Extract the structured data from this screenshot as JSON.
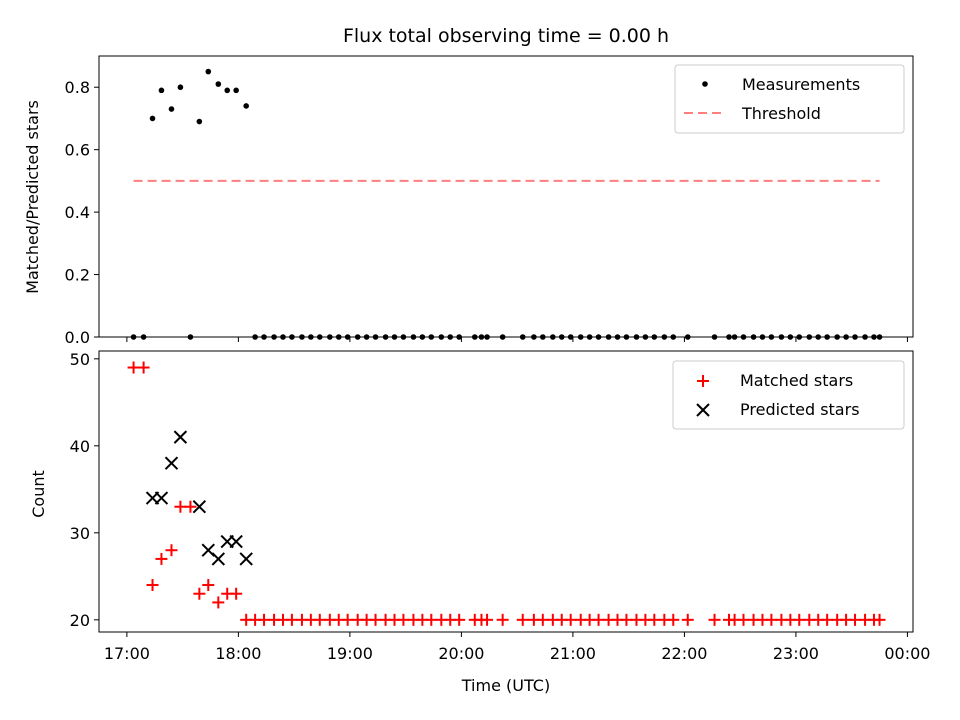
{
  "chart_data": [
    {
      "type": "scatter",
      "title": "Flux total observing time = 0.00 h",
      "xlabel": "",
      "ylabel": "Matched/Predicted stars",
      "ylim": [
        0,
        0.9
      ],
      "yticks": [
        0.0,
        0.2,
        0.4,
        0.6,
        0.8
      ],
      "ytick_labels": [
        "0.0",
        "0.2",
        "0.4",
        "0.6",
        "0.8"
      ],
      "legend_position": "top-right",
      "series": [
        {
          "name": "Measurements",
          "marker": "dot",
          "color": "#000000",
          "points": [
            [
              17.06,
              0.0
            ],
            [
              17.15,
              0.0
            ],
            [
              17.23,
              0.7
            ],
            [
              17.31,
              0.79
            ],
            [
              17.4,
              0.73
            ],
            [
              17.48,
              0.8
            ],
            [
              17.57,
              0.0
            ],
            [
              17.65,
              0.69
            ],
            [
              17.73,
              0.85
            ],
            [
              17.82,
              0.81
            ],
            [
              17.9,
              0.79
            ],
            [
              17.98,
              0.79
            ],
            [
              18.07,
              0.74
            ],
            [
              18.15,
              0.0
            ],
            [
              18.23,
              0.0
            ],
            [
              18.32,
              0.0
            ],
            [
              18.4,
              0.0
            ],
            [
              18.48,
              0.0
            ],
            [
              18.57,
              0.0
            ],
            [
              18.65,
              0.0
            ],
            [
              18.73,
              0.0
            ],
            [
              18.82,
              0.0
            ],
            [
              18.9,
              0.0
            ],
            [
              18.98,
              0.0
            ],
            [
              19.07,
              0.0
            ],
            [
              19.15,
              0.0
            ],
            [
              19.23,
              0.0
            ],
            [
              19.32,
              0.0
            ],
            [
              19.4,
              0.0
            ],
            [
              19.48,
              0.0
            ],
            [
              19.57,
              0.0
            ],
            [
              19.65,
              0.0
            ],
            [
              19.73,
              0.0
            ],
            [
              19.82,
              0.0
            ],
            [
              19.9,
              0.0
            ],
            [
              19.98,
              0.0
            ],
            [
              20.12,
              0.0
            ],
            [
              20.18,
              0.0
            ],
            [
              20.23,
              0.0
            ],
            [
              20.37,
              0.0
            ],
            [
              20.55,
              0.0
            ],
            [
              20.65,
              0.0
            ],
            [
              20.73,
              0.0
            ],
            [
              20.82,
              0.0
            ],
            [
              20.9,
              0.0
            ],
            [
              20.98,
              0.0
            ],
            [
              21.07,
              0.0
            ],
            [
              21.15,
              0.0
            ],
            [
              21.23,
              0.0
            ],
            [
              21.32,
              0.0
            ],
            [
              21.4,
              0.0
            ],
            [
              21.48,
              0.0
            ],
            [
              21.57,
              0.0
            ],
            [
              21.65,
              0.0
            ],
            [
              21.73,
              0.0
            ],
            [
              21.82,
              0.0
            ],
            [
              21.9,
              0.0
            ],
            [
              22.03,
              0.0
            ],
            [
              22.27,
              0.0
            ],
            [
              22.4,
              0.0
            ],
            [
              22.45,
              0.0
            ],
            [
              22.53,
              0.0
            ],
            [
              22.62,
              0.0
            ],
            [
              22.7,
              0.0
            ],
            [
              22.78,
              0.0
            ],
            [
              22.87,
              0.0
            ],
            [
              22.95,
              0.0
            ],
            [
              23.03,
              0.0
            ],
            [
              23.12,
              0.0
            ],
            [
              23.2,
              0.0
            ],
            [
              23.28,
              0.0
            ],
            [
              23.37,
              0.0
            ],
            [
              23.45,
              0.0
            ],
            [
              23.53,
              0.0
            ],
            [
              23.62,
              0.0
            ],
            [
              23.7,
              0.0
            ],
            [
              23.75,
              0.0
            ]
          ]
        },
        {
          "name": "Threshold",
          "marker": "dashed-line",
          "color": "#ff7f7f",
          "points": [
            [
              17.06,
              0.5
            ],
            [
              23.75,
              0.5
            ]
          ]
        }
      ]
    },
    {
      "type": "scatter",
      "title": "",
      "xlabel": "Time (UTC)",
      "ylabel": "Count",
      "xlim": [
        16.75,
        24.05
      ],
      "xticks": [
        17,
        18,
        19,
        20,
        21,
        22,
        23,
        24
      ],
      "xtick_labels": [
        "17:00",
        "18:00",
        "19:00",
        "20:00",
        "21:00",
        "22:00",
        "23:00",
        "00:00"
      ],
      "ylim": [
        18.6,
        50.9
      ],
      "yticks": [
        20,
        30,
        40,
        50
      ],
      "ytick_labels": [
        "20",
        "30",
        "40",
        "50"
      ],
      "legend_position": "top-right",
      "series": [
        {
          "name": "Matched stars",
          "marker": "plus",
          "color": "#ff0000",
          "points": [
            [
              17.06,
              49
            ],
            [
              17.15,
              49
            ],
            [
              17.23,
              24
            ],
            [
              17.31,
              27
            ],
            [
              17.4,
              28
            ],
            [
              17.48,
              33
            ],
            [
              17.57,
              33
            ],
            [
              17.65,
              23
            ],
            [
              17.73,
              24
            ],
            [
              17.82,
              22
            ],
            [
              17.9,
              23
            ],
            [
              17.98,
              23
            ],
            [
              18.07,
              20
            ],
            [
              18.15,
              20
            ],
            [
              18.23,
              20
            ],
            [
              18.32,
              20
            ],
            [
              18.4,
              20
            ],
            [
              18.48,
              20
            ],
            [
              18.57,
              20
            ],
            [
              18.65,
              20
            ],
            [
              18.73,
              20
            ],
            [
              18.82,
              20
            ],
            [
              18.9,
              20
            ],
            [
              18.98,
              20
            ],
            [
              19.07,
              20
            ],
            [
              19.15,
              20
            ],
            [
              19.23,
              20
            ],
            [
              19.32,
              20
            ],
            [
              19.4,
              20
            ],
            [
              19.48,
              20
            ],
            [
              19.57,
              20
            ],
            [
              19.65,
              20
            ],
            [
              19.73,
              20
            ],
            [
              19.82,
              20
            ],
            [
              19.9,
              20
            ],
            [
              19.98,
              20
            ],
            [
              20.12,
              20
            ],
            [
              20.18,
              20
            ],
            [
              20.23,
              20
            ],
            [
              20.37,
              20
            ],
            [
              20.55,
              20
            ],
            [
              20.65,
              20
            ],
            [
              20.73,
              20
            ],
            [
              20.82,
              20
            ],
            [
              20.9,
              20
            ],
            [
              20.98,
              20
            ],
            [
              21.07,
              20
            ],
            [
              21.15,
              20
            ],
            [
              21.23,
              20
            ],
            [
              21.32,
              20
            ],
            [
              21.4,
              20
            ],
            [
              21.48,
              20
            ],
            [
              21.57,
              20
            ],
            [
              21.65,
              20
            ],
            [
              21.73,
              20
            ],
            [
              21.82,
              20
            ],
            [
              21.9,
              20
            ],
            [
              22.03,
              20
            ],
            [
              22.27,
              20
            ],
            [
              22.4,
              20
            ],
            [
              22.45,
              20
            ],
            [
              22.53,
              20
            ],
            [
              22.62,
              20
            ],
            [
              22.7,
              20
            ],
            [
              22.78,
              20
            ],
            [
              22.87,
              20
            ],
            [
              22.95,
              20
            ],
            [
              23.03,
              20
            ],
            [
              23.12,
              20
            ],
            [
              23.2,
              20
            ],
            [
              23.28,
              20
            ],
            [
              23.37,
              20
            ],
            [
              23.45,
              20
            ],
            [
              23.53,
              20
            ],
            [
              23.62,
              20
            ],
            [
              23.7,
              20
            ],
            [
              23.75,
              20
            ]
          ]
        },
        {
          "name": "Predicted stars",
          "marker": "x",
          "color": "#000000",
          "points": [
            [
              17.23,
              34
            ],
            [
              17.31,
              34
            ],
            [
              17.4,
              38
            ],
            [
              17.48,
              41
            ],
            [
              17.65,
              33
            ],
            [
              17.73,
              28
            ],
            [
              17.82,
              27
            ],
            [
              17.9,
              29
            ],
            [
              17.98,
              29
            ],
            [
              18.07,
              27
            ]
          ]
        }
      ]
    }
  ]
}
